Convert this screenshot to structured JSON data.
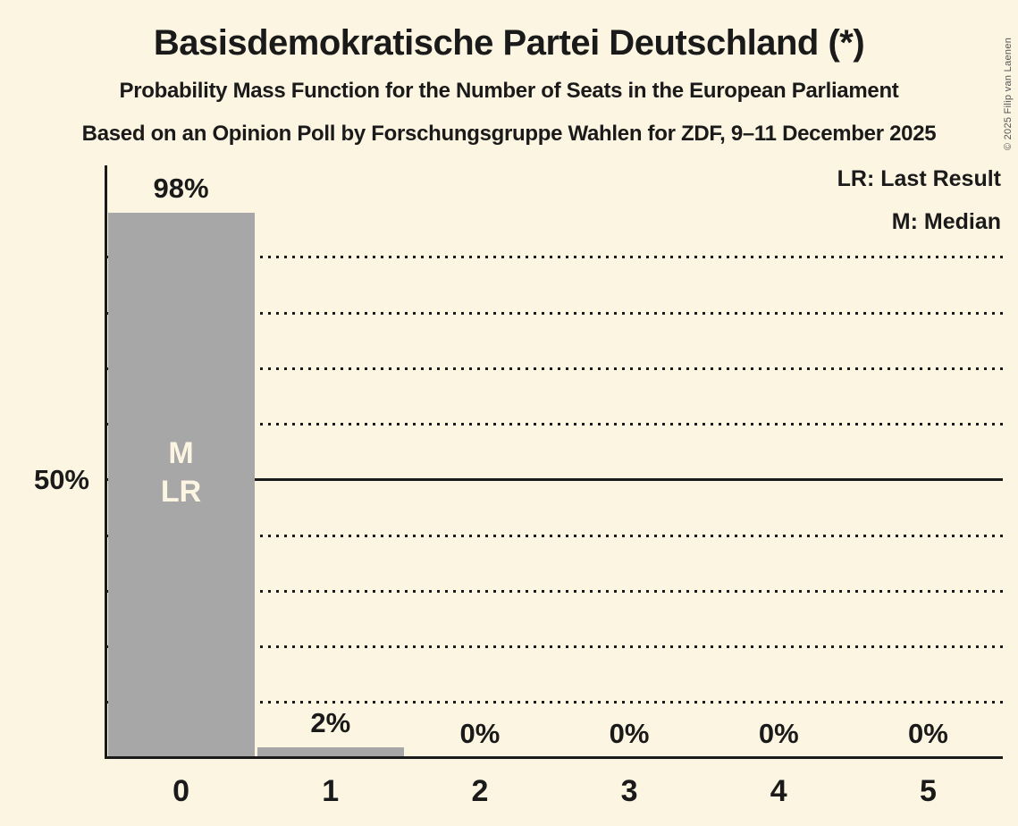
{
  "header": {
    "title": "Basisdemokratische Partei Deutschland (*)",
    "subtitle": "Probability Mass Function for the Number of Seats in the European Parliament",
    "poll_line": "Based on an Opinion Poll by Forschungsgruppe Wahlen for ZDF, 9–11 December 2025"
  },
  "legend": {
    "lr": "LR: Last Result",
    "m": "M: Median"
  },
  "copyright": "© 2025 Filip van Laenen",
  "y_axis": {
    "label_50": "50%"
  },
  "chart_data": {
    "type": "bar",
    "title": "Basisdemokratische Partei Deutschland (*) — Probability Mass Function for the Number of Seats in the European Parliament",
    "categories": [
      "0",
      "1",
      "2",
      "3",
      "4",
      "5"
    ],
    "values": [
      98,
      2,
      0,
      0,
      0,
      0
    ],
    "value_labels": [
      "98%",
      "2%",
      "0%",
      "0%",
      "0%",
      "0%"
    ],
    "bar_annotations": [
      {
        "index": 0,
        "lines": [
          "M",
          "LR"
        ]
      }
    ],
    "median_seats": 0,
    "last_result_seats": 0,
    "xlabel": "",
    "ylabel": "",
    "ylim": [
      0,
      100
    ],
    "y_tick_labels_shown": [
      "50%"
    ],
    "grid": "on",
    "gridlines_pct": [
      10,
      20,
      30,
      40,
      50,
      60,
      70,
      80,
      90
    ],
    "solid_gridline_pct": 50,
    "legend_position": "top-right",
    "colors": {
      "background": "#FCF5E1",
      "bar": "#A7A7A7",
      "text": "#1A1A1A",
      "bar_label": "#FCF5E1",
      "copyright": "#555555"
    }
  }
}
